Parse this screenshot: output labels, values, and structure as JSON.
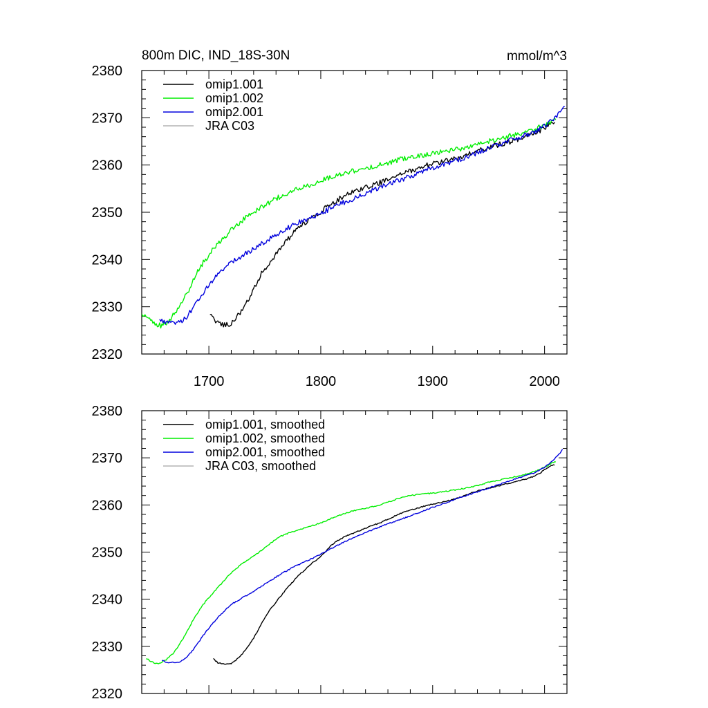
{
  "chart_data": [
    {
      "type": "line",
      "title_left": "800m DIC, IND_18S-30N",
      "title_right": "mmol/m^3",
      "xlabel": "",
      "ylabel": "",
      "xlim": [
        1640,
        2020
      ],
      "ylim": [
        2320,
        2380
      ],
      "x_ticks": [
        1700,
        1800,
        1900,
        2000
      ],
      "x_tick_labels": [
        "1700",
        "1800",
        "1900",
        "2000"
      ],
      "y_ticks": [
        2320,
        2330,
        2340,
        2350,
        2360,
        2370,
        2380
      ],
      "y_tick_labels": [
        "2320",
        "2330",
        "2340",
        "2350",
        "2360",
        "2370",
        "2380"
      ],
      "grid": false,
      "legend_position": "top-left",
      "noise": 0.55,
      "series": [
        {
          "name": "omip1.001",
          "color": "#000000",
          "x": [
            1701,
            1706,
            1712,
            1718,
            1724,
            1730,
            1736,
            1742,
            1748,
            1754,
            1760,
            1766,
            1772,
            1778,
            1784,
            1790,
            1796,
            1802,
            1808,
            1814,
            1820,
            1826,
            1832,
            1838,
            1844,
            1850,
            1858,
            1866,
            1874,
            1882,
            1890,
            1898,
            1906,
            1914,
            1922,
            1930,
            1938,
            1946,
            1954,
            1962,
            1970,
            1978,
            1986,
            1994,
            2000,
            2004,
            2009
          ],
          "y": [
            2328.2,
            2327.0,
            2326.3,
            2326.2,
            2327.5,
            2329.5,
            2331.8,
            2334.6,
            2337.5,
            2339.3,
            2341.2,
            2343.0,
            2344.6,
            2346.2,
            2347.4,
            2348.3,
            2349.4,
            2350.5,
            2351.6,
            2352.5,
            2353.3,
            2354.0,
            2354.6,
            2355.0,
            2355.5,
            2356.0,
            2356.7,
            2357.5,
            2358.3,
            2358.9,
            2359.6,
            2360.1,
            2360.5,
            2361.0,
            2361.5,
            2362.2,
            2362.8,
            2363.4,
            2364.0,
            2364.5,
            2365.0,
            2365.6,
            2366.2,
            2367.0,
            2367.9,
            2368.6,
            2369.0
          ]
        },
        {
          "name": "omip1.002",
          "color": "#00ee00",
          "x": [
            1640,
            1646,
            1652,
            1658,
            1664,
            1670,
            1676,
            1682,
            1688,
            1694,
            1700,
            1706,
            1712,
            1718,
            1724,
            1730,
            1736,
            1742,
            1748,
            1754,
            1760,
            1770,
            1780,
            1790,
            1800,
            1810,
            1820,
            1830,
            1840,
            1850,
            1860,
            1870,
            1880,
            1890,
            1900,
            1910,
            1920,
            1930,
            1940,
            1950,
            1960,
            1970,
            1980,
            1990,
            2000,
            2006,
            2010
          ],
          "y": [
            2328.0,
            2327.5,
            2326.2,
            2326.0,
            2327.0,
            2328.8,
            2331.0,
            2333.6,
            2336.6,
            2339.0,
            2341.0,
            2342.7,
            2344.3,
            2345.8,
            2347.1,
            2348.3,
            2349.3,
            2350.3,
            2351.3,
            2352.1,
            2352.9,
            2354.0,
            2354.9,
            2355.7,
            2356.6,
            2357.5,
            2358.2,
            2358.8,
            2359.3,
            2359.9,
            2360.5,
            2361.1,
            2361.7,
            2362.1,
            2362.4,
            2362.8,
            2363.2,
            2363.7,
            2364.3,
            2365.0,
            2365.6,
            2366.2,
            2366.7,
            2367.4,
            2368.5,
            2369.2,
            2369.8
          ]
        },
        {
          "name": "omip2.001",
          "color": "#0000dd",
          "x": [
            1656,
            1660,
            1664,
            1668,
            1674,
            1680,
            1686,
            1692,
            1698,
            1704,
            1710,
            1716,
            1722,
            1728,
            1736,
            1744,
            1752,
            1760,
            1768,
            1776,
            1784,
            1792,
            1800,
            1808,
            1816,
            1824,
            1832,
            1840,
            1850,
            1860,
            1870,
            1880,
            1890,
            1900,
            1910,
            1920,
            1930,
            1940,
            1950,
            1960,
            1970,
            1980,
            1990,
            2000,
            2006,
            2012,
            2018
          ],
          "y": [
            2327.5,
            2326.8,
            2326.5,
            2326.5,
            2326.7,
            2327.8,
            2329.8,
            2332.0,
            2334.1,
            2335.8,
            2337.4,
            2338.7,
            2339.6,
            2340.6,
            2341.7,
            2342.8,
            2344.0,
            2345.2,
            2346.3,
            2347.3,
            2348.2,
            2349.0,
            2349.8,
            2350.7,
            2351.6,
            2352.4,
            2353.2,
            2354.0,
            2355.0,
            2355.9,
            2356.8,
            2357.6,
            2358.4,
            2359.3,
            2360.1,
            2360.9,
            2361.7,
            2362.6,
            2363.5,
            2364.4,
            2365.3,
            2366.1,
            2366.9,
            2368.3,
            2369.5,
            2370.6,
            2372.5
          ]
        },
        {
          "name": "JRA C03",
          "color": "#b4b4b4",
          "x": [],
          "y": []
        }
      ]
    },
    {
      "type": "line",
      "title_left": "",
      "title_right": "",
      "xlabel": "",
      "ylabel": "",
      "xlim": [
        1640,
        2020
      ],
      "ylim": [
        2320,
        2380
      ],
      "x_ticks": [
        1700,
        1800,
        1900,
        2000
      ],
      "x_tick_labels": [],
      "y_ticks": [
        2320,
        2330,
        2340,
        2350,
        2360,
        2370,
        2380
      ],
      "y_tick_labels": [
        "2320",
        "2330",
        "2340",
        "2350",
        "2360",
        "2370",
        "2380"
      ],
      "grid": false,
      "legend_position": "top-left",
      "noise": 0.12,
      "series": [
        {
          "name": "omip1.001, smoothed",
          "color": "#000000",
          "x": [
            1704,
            1708,
            1714,
            1720,
            1726,
            1732,
            1738,
            1744,
            1750,
            1756,
            1762,
            1768,
            1774,
            1780,
            1786,
            1792,
            1798,
            1804,
            1810,
            1816,
            1822,
            1830,
            1838,
            1846,
            1854,
            1862,
            1870,
            1878,
            1886,
            1894,
            1902,
            1910,
            1918,
            1926,
            1934,
            1942,
            1950,
            1958,
            1966,
            1974,
            1982,
            1990,
            1996,
            2002,
            2006,
            2009
          ],
          "y": [
            2327.4,
            2326.5,
            2326.3,
            2326.4,
            2327.4,
            2329.0,
            2331.0,
            2333.4,
            2336.1,
            2338.2,
            2340.0,
            2341.8,
            2343.4,
            2345.0,
            2346.3,
            2347.6,
            2348.7,
            2350.1,
            2351.6,
            2352.6,
            2353.3,
            2354.1,
            2354.9,
            2355.6,
            2356.3,
            2357.2,
            2358.1,
            2358.7,
            2359.3,
            2359.8,
            2360.3,
            2360.7,
            2361.1,
            2361.8,
            2362.5,
            2363.1,
            2363.6,
            2364.0,
            2364.5,
            2364.9,
            2365.4,
            2366.0,
            2366.8,
            2367.8,
            2368.3,
            2368.5
          ]
        },
        {
          "name": "omip1.002, smoothed",
          "color": "#00ee00",
          "x": [
            1644,
            1648,
            1652,
            1656,
            1662,
            1668,
            1674,
            1680,
            1686,
            1692,
            1698,
            1704,
            1710,
            1716,
            1722,
            1728,
            1734,
            1740,
            1746,
            1752,
            1758,
            1764,
            1772,
            1780,
            1790,
            1800,
            1810,
            1820,
            1830,
            1840,
            1850,
            1860,
            1870,
            1880,
            1890,
            1900,
            1910,
            1920,
            1930,
            1940,
            1950,
            1960,
            1970,
            1980,
            1990,
            2000,
            2006,
            2010
          ],
          "y": [
            2327.5,
            2326.8,
            2326.4,
            2326.4,
            2327.2,
            2328.5,
            2330.5,
            2332.9,
            2335.6,
            2337.9,
            2339.8,
            2341.4,
            2343.0,
            2344.6,
            2346.0,
            2347.2,
            2348.2,
            2349.1,
            2350.2,
            2351.3,
            2352.4,
            2353.3,
            2354.1,
            2354.7,
            2355.4,
            2356.2,
            2357.2,
            2358.1,
            2358.8,
            2359.3,
            2359.8,
            2360.6,
            2361.4,
            2362.0,
            2362.3,
            2362.5,
            2362.8,
            2363.2,
            2363.6,
            2364.1,
            2364.8,
            2365.3,
            2365.8,
            2366.3,
            2367.0,
            2368.0,
            2368.8,
            2369.2
          ]
        },
        {
          "name": "omip2.001, smoothed",
          "color": "#0000dd",
          "x": [
            1658,
            1662,
            1668,
            1674,
            1680,
            1686,
            1692,
            1698,
            1704,
            1710,
            1716,
            1722,
            1730,
            1738,
            1746,
            1754,
            1762,
            1770,
            1778,
            1786,
            1794,
            1802,
            1810,
            1818,
            1826,
            1834,
            1842,
            1850,
            1860,
            1870,
            1880,
            1890,
            1900,
            1910,
            1920,
            1930,
            1940,
            1950,
            1960,
            1970,
            1980,
            1990,
            2000,
            2006,
            2012,
            2016
          ],
          "y": [
            2327.0,
            2326.6,
            2326.6,
            2326.7,
            2327.6,
            2329.3,
            2331.3,
            2333.3,
            2335.0,
            2336.6,
            2338.0,
            2339.2,
            2340.3,
            2341.4,
            2342.6,
            2343.8,
            2345.0,
            2346.1,
            2347.1,
            2348.0,
            2348.8,
            2349.8,
            2350.8,
            2351.8,
            2352.7,
            2353.5,
            2354.3,
            2355.1,
            2356.0,
            2356.8,
            2357.7,
            2358.6,
            2359.5,
            2360.3,
            2361.2,
            2362.0,
            2362.8,
            2363.6,
            2364.4,
            2365.2,
            2366.0,
            2366.7,
            2368.0,
            2369.2,
            2370.5,
            2371.7
          ]
        },
        {
          "name": "JRA C03, smoothed",
          "color": "#b4b4b4",
          "x": [],
          "y": []
        }
      ]
    }
  ]
}
